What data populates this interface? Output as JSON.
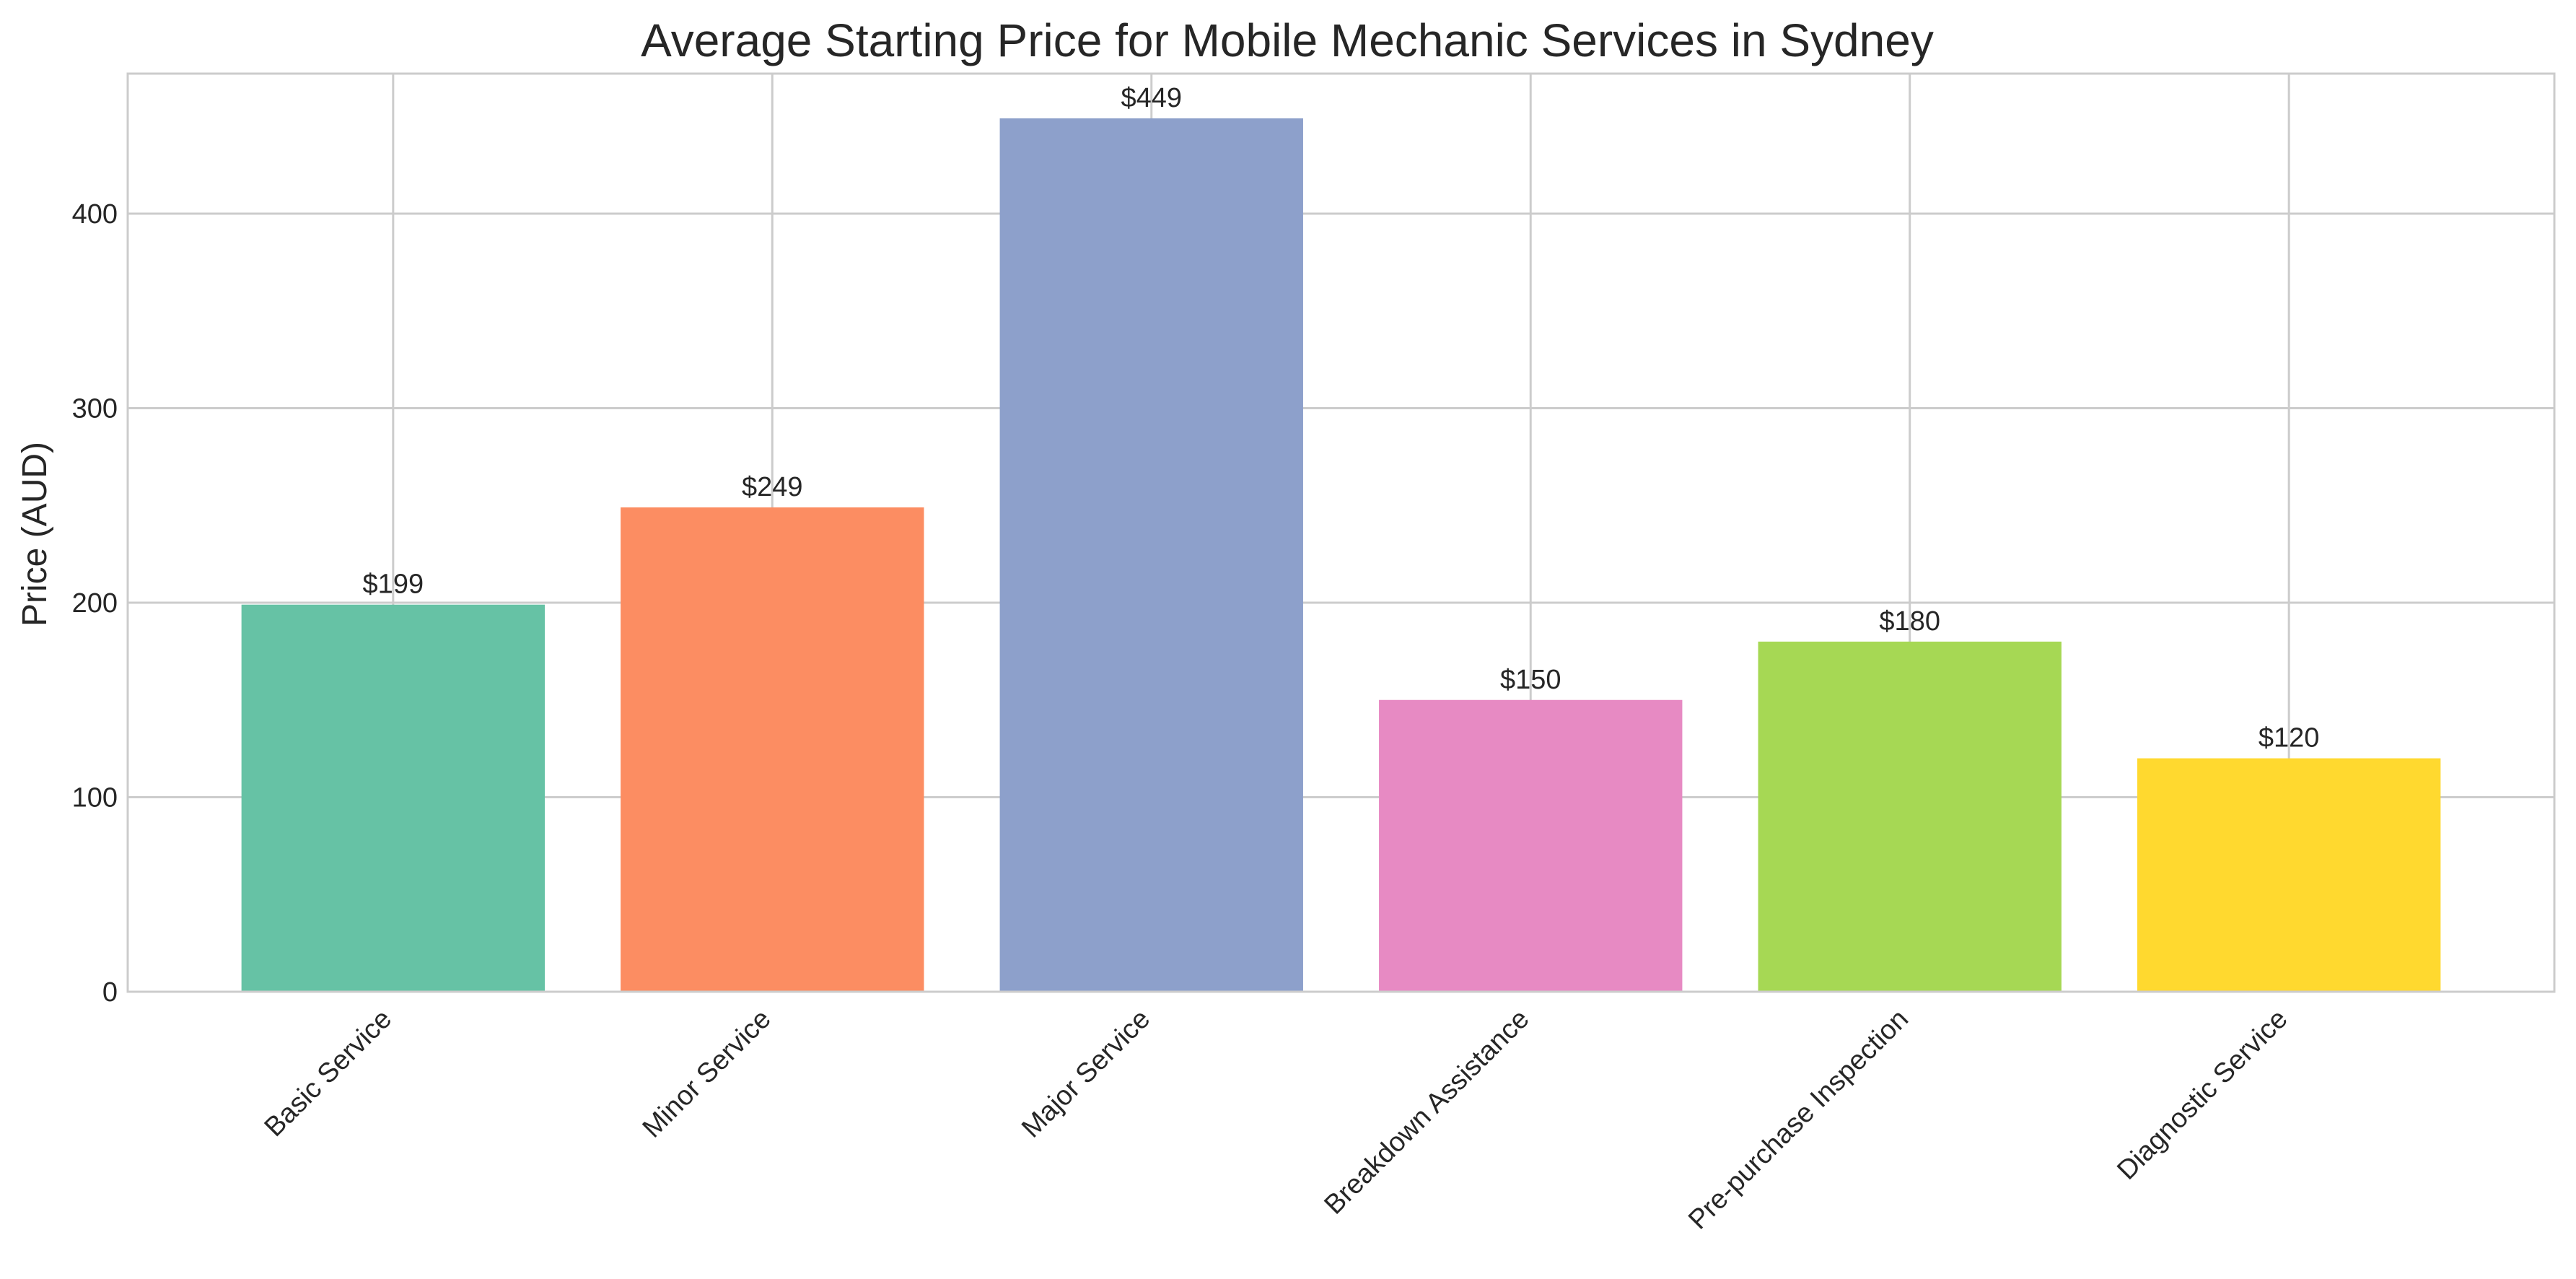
{
  "chart_data": {
    "type": "bar",
    "title": "Average Starting Price for Mobile Mechanic Services in Sydney",
    "xlabel": "",
    "ylabel": "Price (AUD)",
    "categories": [
      "Basic Service",
      "Minor Service",
      "Major Service",
      "Breakdown Assistance",
      "Pre-purchase Inspection",
      "Diagnostic Service"
    ],
    "values": [
      199,
      249,
      449,
      150,
      180,
      120
    ],
    "value_labels": [
      "$199",
      "$249",
      "$449",
      "$150",
      "$180",
      "$120"
    ],
    "colors": [
      "#66c2a5",
      "#fc8d62",
      "#8da0cb",
      "#e78ac3",
      "#a6d854",
      "#ffd92f"
    ],
    "ylim": [
      0,
      472
    ],
    "yticks": [
      0,
      100,
      200,
      300,
      400
    ],
    "ytick_labels": [
      "0",
      "100",
      "200",
      "300",
      "400"
    ],
    "grid": true,
    "legend": "none"
  }
}
